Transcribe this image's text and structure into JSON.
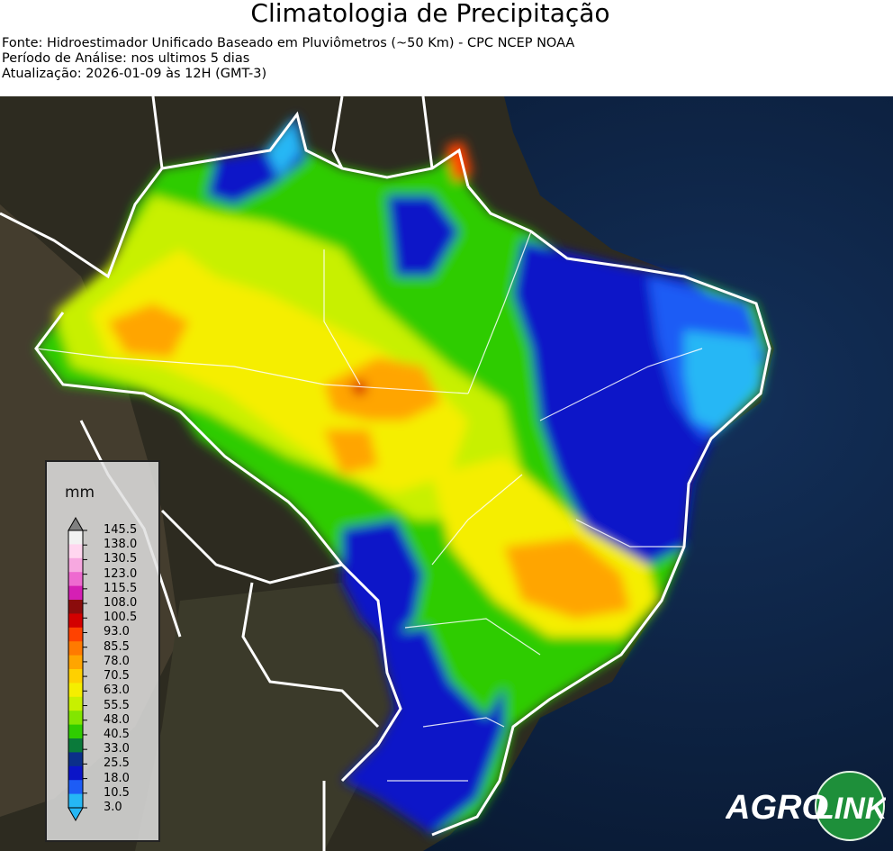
{
  "header": {
    "title": "Climatologia de Precipitação",
    "source": "Fonte: Hidroestimador Unificado Baseado em Pluviômetros (~50 Km) - CPC NCEP NOAA",
    "period": "Período de Análise: nos ultimos 5 dias",
    "updated": "Atualização: 2026-01-09 às 12H (GMT-3)"
  },
  "legend": {
    "unit": "mm",
    "ticks": [
      "145.5",
      "138.0",
      "130.5",
      "123.0",
      "115.5",
      "108.0",
      "100.5",
      "93.0",
      "85.5",
      "78.0",
      "70.5",
      "63.0",
      "55.5",
      "48.0",
      "40.5",
      "33.0",
      "25.5",
      "18.0",
      "10.5",
      "3.0"
    ],
    "colors": [
      "#f2f2f2",
      "#ffd6ef",
      "#f7a8e0",
      "#ee6ad0",
      "#d51fb4",
      "#8b0c0c",
      "#d30000",
      "#ff4200",
      "#ff7a00",
      "#ffa500",
      "#ffd000",
      "#f5ee00",
      "#c8f000",
      "#82e600",
      "#2fcc00",
      "#0a7a3a",
      "#0b2f8a",
      "#0a14c8",
      "#1d5cf5",
      "#25b7f5"
    ],
    "arrow_top_color": "#808080",
    "arrow_bottom_color": "#25b7f5"
  },
  "logo": {
    "part1": "AGRO",
    "part2": "LINK"
  },
  "colors": {
    "ocean": "#0a1c36",
    "land": "#2b2a22",
    "borders": "#ffffff"
  }
}
